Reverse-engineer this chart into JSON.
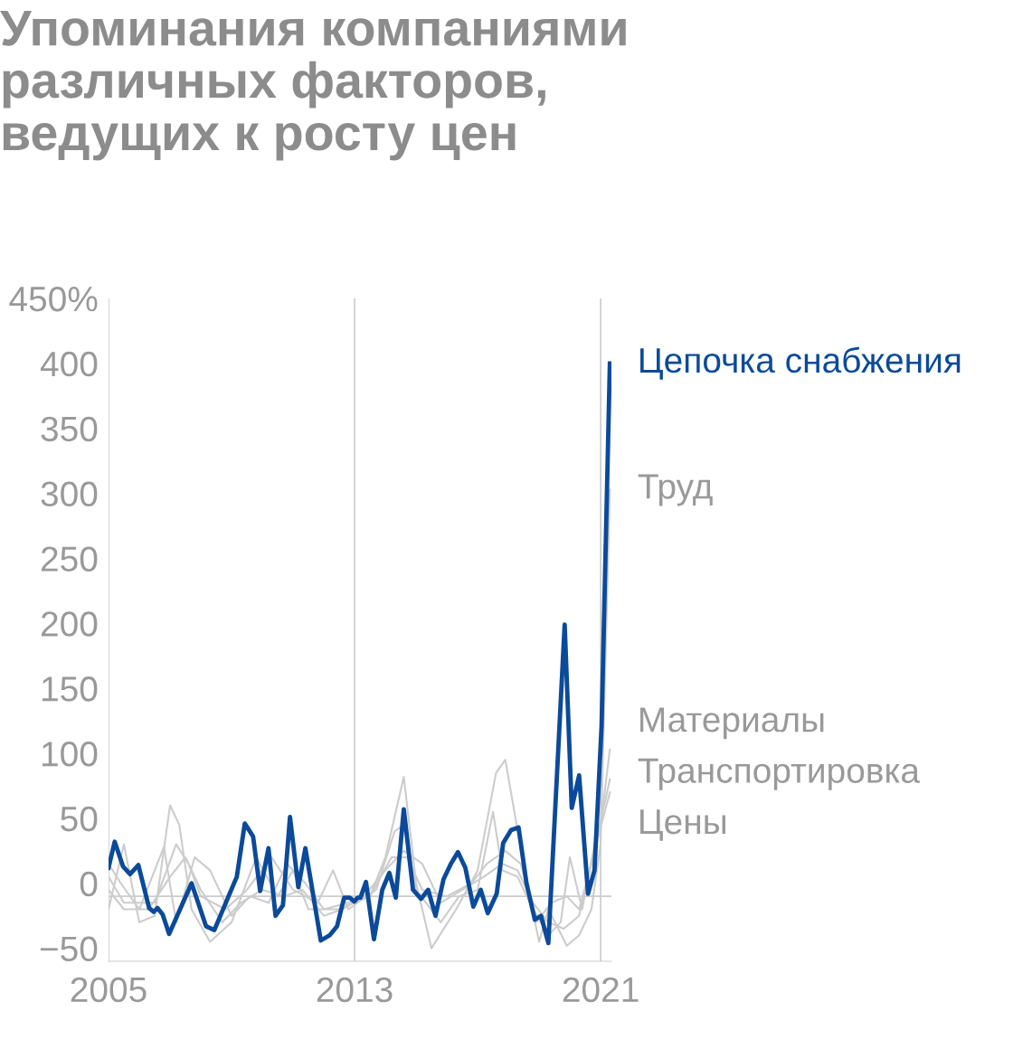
{
  "chart_data": {
    "type": "line",
    "title": "Упоминания компаниями\nразличных факторов,\nведущих к росту цен",
    "xlim": [
      2005,
      2021.35
    ],
    "xticks": [
      2005,
      2013,
      2021
    ],
    "ylim": [
      -60,
      450
    ],
    "yticks": [
      {
        "value": 450,
        "label": "450%"
      },
      400,
      350,
      300,
      250,
      200,
      150,
      100,
      50,
      0,
      {
        "value": -50,
        "label": "−50"
      }
    ],
    "grid": "x",
    "legend": false,
    "ref_lines": [
      {
        "axis": "y",
        "value": -10,
        "label": null,
        "color": "#cccccc"
      }
    ],
    "series": [
      {
        "name": "Труд",
        "color": "#cccccc",
        "x": [
          2005.0,
          2005.5,
          2006.0,
          2006.5,
          2007.0,
          2007.3,
          2007.7,
          2008.3,
          2009.0,
          2009.8,
          2010.5,
          2011.0,
          2011.5,
          2012.5,
          2013.5,
          2014.0,
          2014.6,
          2015.0,
          2015.5,
          2016.3,
          2017.0,
          2017.6,
          2017.9,
          2018.6,
          2019.0,
          2019.3,
          2019.9,
          2020.3,
          2020.7,
          2021.0,
          2021.3
        ],
        "values": [
          -20,
          30,
          -30,
          -25,
          60,
          45,
          -20,
          -45,
          -30,
          20,
          -10,
          10,
          -20,
          -20,
          -10,
          20,
          82,
          0,
          -50,
          -20,
          10,
          85,
          95,
          0,
          -45,
          -20,
          -48,
          -40,
          -20,
          30,
          303
        ]
      },
      {
        "name": "Материалы",
        "color": "#cccccc",
        "x": [
          2005.0,
          2005.5,
          2006.5,
          2007.2,
          2007.6,
          2008.0,
          2008.8,
          2009.5,
          2010.3,
          2011.0,
          2011.8,
          2012.3,
          2012.8,
          2013.7,
          2014.3,
          2014.6,
          2015.0,
          2015.8,
          2016.4,
          2017.0,
          2017.5,
          2017.8,
          2018.3,
          2018.8,
          2019.3,
          2019.7,
          2020.0,
          2020.4,
          2020.8,
          2021.0,
          2021.3
        ],
        "values": [
          5,
          -15,
          -15,
          30,
          15,
          -10,
          -20,
          -5,
          20,
          -5,
          -15,
          10,
          -20,
          -5,
          40,
          45,
          -5,
          -30,
          -10,
          -5,
          55,
          10,
          5,
          -20,
          -40,
          -30,
          20,
          -20,
          30,
          45,
          103
        ]
      },
      {
        "name": "Транспортировка",
        "color": "#cccccc",
        "x": [
          2005.0,
          2005.4,
          2006.0,
          2006.8,
          2007.2,
          2007.8,
          2008.3,
          2009.0,
          2009.6,
          2010.2,
          2010.8,
          2011.4,
          2012.0,
          2012.8,
          2013.5,
          2014.2,
          2014.7,
          2015.2,
          2016.0,
          2016.8,
          2017.3,
          2017.9,
          2018.4,
          2018.9,
          2019.4,
          2019.9,
          2020.3,
          2020.7,
          2021.3
        ],
        "values": [
          15,
          0,
          -20,
          28,
          -30,
          20,
          10,
          -25,
          -10,
          -15,
          15,
          0,
          -20,
          -15,
          -10,
          20,
          20,
          -5,
          -10,
          0,
          15,
          25,
          15,
          -30,
          -15,
          -10,
          -20,
          15,
          80
        ]
      },
      {
        "name": "Цены",
        "color": "#cccccc",
        "x": [
          2005.0,
          2005.5,
          2006.3,
          2007.0,
          2007.5,
          2008.0,
          2008.7,
          2009.3,
          2010.0,
          2010.7,
          2011.3,
          2012.0,
          2012.6,
          2013.3,
          2014.0,
          2014.6,
          2015.2,
          2015.8,
          2016.5,
          2017.2,
          2017.8,
          2018.3,
          2018.8,
          2019.3,
          2019.8,
          2020.3,
          2020.8,
          2021.3
        ],
        "values": [
          -5,
          -20,
          -20,
          5,
          20,
          -5,
          -30,
          -15,
          -5,
          -10,
          -5,
          -25,
          -20,
          -10,
          10,
          25,
          15,
          -15,
          -5,
          5,
          15,
          10,
          -15,
          -30,
          -35,
          -25,
          25,
          70
        ]
      },
      {
        "name": "Цепочка снабжения",
        "color": "#0b4a9a",
        "x": [
          2005.0,
          2005.2,
          2005.47,
          2005.7,
          2005.97,
          2006.32,
          2006.47,
          2006.59,
          2006.76,
          2006.97,
          2007.7,
          2008.17,
          2008.44,
          2009.17,
          2009.43,
          2009.7,
          2009.93,
          2010.2,
          2010.43,
          2010.67,
          2010.9,
          2011.17,
          2011.4,
          2011.9,
          2012.19,
          2012.43,
          2012.66,
          2012.84,
          2012.99,
          2013.1,
          2013.19,
          2013.37,
          2013.63,
          2013.9,
          2014.13,
          2014.34,
          2014.6,
          2014.9,
          2015.16,
          2015.39,
          2015.63,
          2015.89,
          2016.13,
          2016.36,
          2016.6,
          2016.86,
          2017.1,
          2017.33,
          2017.62,
          2017.83,
          2018.09,
          2018.33,
          2018.59,
          2018.86,
          2019.06,
          2019.3,
          2019.83,
          2020.06,
          2020.3,
          2020.59,
          2020.8,
          2021.03,
          2021.3
        ],
        "values": [
          12,
          32,
          13,
          7,
          14,
          -19,
          -22,
          -19,
          -24,
          -39,
          0,
          -33,
          -36,
          5,
          46,
          36,
          -6,
          27,
          -25,
          -17,
          51,
          -3,
          27,
          -44,
          -40,
          -33,
          -11,
          -11,
          -14,
          -11,
          -11,
          1,
          -43,
          -5,
          8,
          -11,
          57,
          -5,
          -12,
          -5,
          -25,
          3,
          15,
          24,
          12,
          -18,
          -5,
          -23,
          -8,
          31,
          41,
          43,
          0,
          -28,
          -25,
          -46,
          199,
          58,
          83,
          -8,
          10,
          121,
          400
        ]
      }
    ]
  }
}
